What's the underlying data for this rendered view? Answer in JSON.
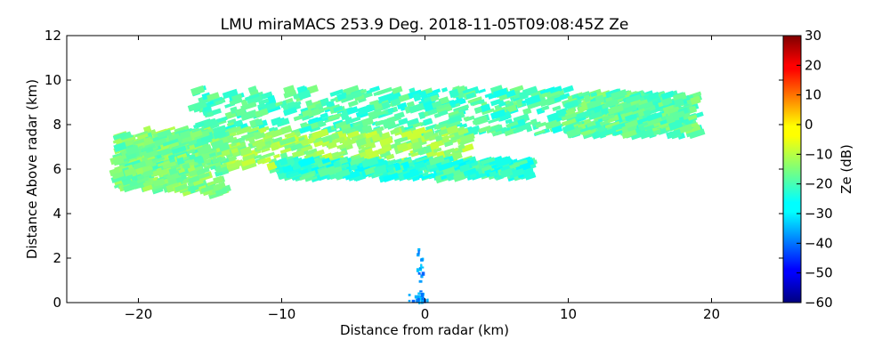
{
  "chart_data": {
    "type": "heatmap",
    "title": "LMU miraMACS 253.9 Deg. 2018-11-05T09:08:45Z  Ze",
    "xlabel": "Distance from radar (km)",
    "ylabel": "Distance Above radar  (km)",
    "xlim": [
      -25,
      25
    ],
    "ylim": [
      0,
      12
    ],
    "x_ticks": [
      -20,
      -10,
      0,
      10,
      20
    ],
    "x_tick_labels": [
      "−20",
      "−10",
      "0",
      "10",
      "20"
    ],
    "y_ticks": [
      0,
      2,
      4,
      6,
      8,
      10,
      12
    ],
    "y_tick_labels": [
      "0",
      "2",
      "4",
      "6",
      "8",
      "10",
      "12"
    ],
    "colorbar": {
      "label": "Ze (dB)",
      "range": [
        -60,
        30
      ],
      "colormap": "jet",
      "ticks": [
        30,
        20,
        10,
        0,
        -10,
        -20,
        -30,
        -40,
        -50,
        -60
      ],
      "tick_labels": [
        "30",
        "20",
        "10",
        "0",
        "−10",
        "−20",
        "−30",
        "−40",
        "−50",
        "−60"
      ]
    },
    "echo_regions": [
      {
        "name": "upper-cloud-layer",
        "x_range": [
          -16,
          10
        ],
        "y_range": [
          7.6,
          9.6
        ],
        "ze_typical": -20
      },
      {
        "name": "main-cloud-body",
        "x_range": [
          -20,
          3
        ],
        "y_range": [
          6.0,
          7.8
        ],
        "ze_typical": -13
      },
      {
        "name": "left-slanted-edge",
        "x_range": [
          -21.5,
          -14
        ],
        "y_range": [
          4.8,
          7.9
        ],
        "ze_typical": -16
      },
      {
        "name": "lower-streak",
        "x_range": [
          -10,
          7.5
        ],
        "y_range": [
          5.6,
          6.4
        ],
        "ze_typical": -22
      },
      {
        "name": "right-fall-streaks",
        "x_range": [
          10,
          19
        ],
        "y_range": [
          7.5,
          9.4
        ],
        "ze_typical": -18
      },
      {
        "name": "near-radar-clutter",
        "x_range": [
          -1.2,
          0.6
        ],
        "y_range": [
          0,
          2.5
        ],
        "ze_typical": -35
      }
    ]
  }
}
